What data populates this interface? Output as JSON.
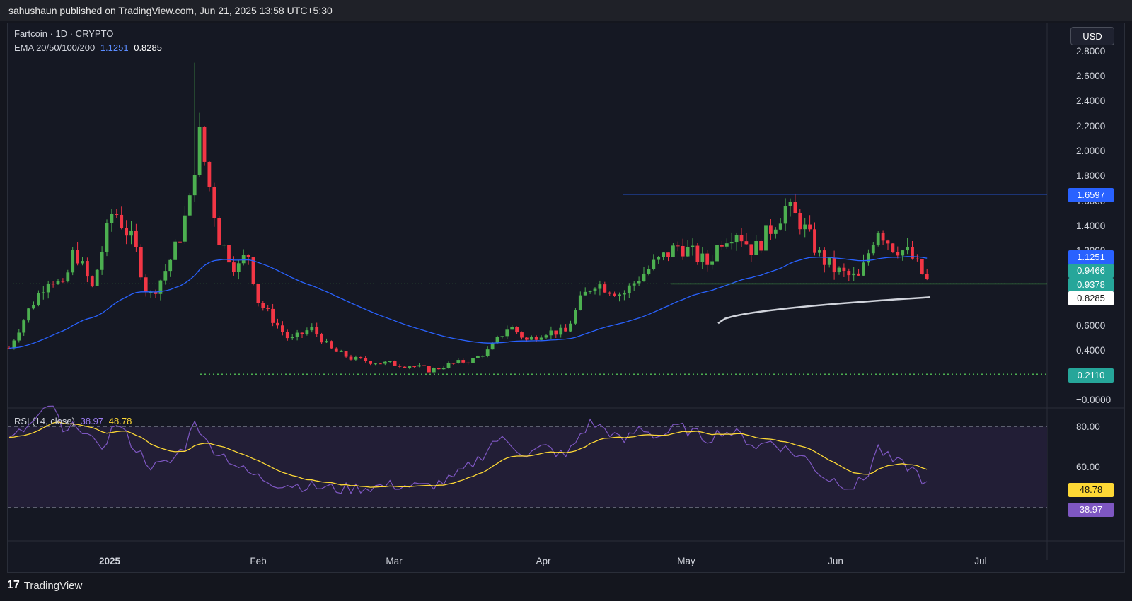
{
  "header": {
    "published_text": "sahushaun published on TradingView.com, Jun 21, 2025 13:58 UTC+5:30"
  },
  "legend": {
    "symbol": "Fartcoin · 1D · CRYPTO",
    "ema_label": "EMA 20/50/100/200",
    "ema_value1": "1.1251",
    "ema_value2": "0.8285"
  },
  "rsi_legend": {
    "label": "RSI (14, close)",
    "value1": "38.97",
    "value2": "48.78"
  },
  "currency_button": "USD",
  "price_axis": [
    "2.8000",
    "2.6000",
    "2.4000",
    "2.2000",
    "2.0000",
    "1.8000",
    "1.6000",
    "1.4000",
    "1.2000",
    "0.6000",
    "0.4000",
    "−0.0000"
  ],
  "rsi_axis": [
    "80.00",
    "60.00"
  ],
  "price_labels": {
    "resistance": "1.6597",
    "ema50": "1.1251",
    "current_high": "0.9466",
    "current_close": "0.9378",
    "ema200": "0.8285",
    "support": "0.2110",
    "rsi_signal": "48.78",
    "rsi_value": "38.97"
  },
  "time_axis": [
    "2025",
    "Feb",
    "Mar",
    "Apr",
    "May",
    "Jun",
    "Jul"
  ],
  "footer": {
    "brand": "TradingView",
    "logo_glyph": "17"
  },
  "colors": {
    "up": "#26a69a",
    "up_bright": "#4caf50",
    "down": "#f23645",
    "ema_blue": "#2962ff",
    "ema_white": "#d1d4dc",
    "resistance_line": "#2962ff",
    "support_line": "#4caf50",
    "rsi_line": "#7e57c2",
    "rsi_signal": "#fdd835"
  },
  "chart_data": {
    "type": "candlestick",
    "symbol": "Fartcoin",
    "interval": "1D",
    "ylim": [
      0,
      2.9
    ],
    "levels": {
      "resistance": 1.6597,
      "support": 0.211,
      "close": 0.9378
    },
    "ema": {
      "ema50": 1.1251,
      "ema200": 0.8285
    },
    "rsi": {
      "period": 14,
      "value": 38.97,
      "signal": 48.78,
      "levels": [
        70,
        50,
        30
      ]
    }
  }
}
